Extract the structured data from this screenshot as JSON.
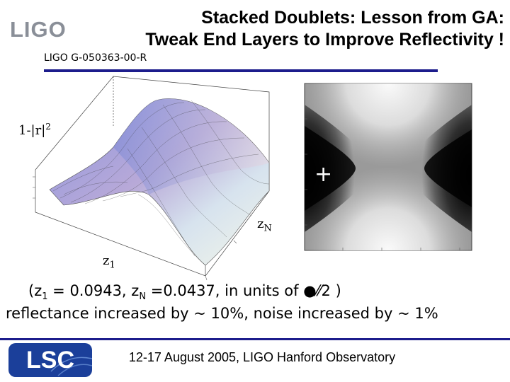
{
  "header": {
    "logo_text": "LIGO",
    "title_line1": "Stacked Doublets: Lesson from GA:",
    "title_line2": "Tweak End Layers to Improve Reflectivity !",
    "doc_id": "LIGO G-050363-00-R"
  },
  "figure": {
    "surface_label_prefix": "1-|",
    "surface_label_symbol": "r",
    "surface_label_suffix": "|",
    "surface_label_power": "2",
    "axis_zn": "z",
    "axis_zn_sub": "N",
    "axis_z1": "z",
    "axis_z1_sub": "1",
    "marker": "+"
  },
  "caption": {
    "open": "(z",
    "z1_sub": "1",
    "z1_value": " = 0.0943, z",
    "zn_sub": "N",
    "zn_value": " =0.0437, in units of ",
    "units_symbols": "●⁄⁄2",
    "close": " )",
    "line2": "reflectance increased by ~ 10%, noise increased by ~ 1%"
  },
  "footer": {
    "lsc_text": "LSC",
    "text": "12-17 August 2005, LIGO Hanford Observatory"
  },
  "colors": {
    "accent_rule": "#1c1c8c",
    "lsc_blue": "#1b3f9a",
    "logo_gray": "#8a8f98"
  }
}
